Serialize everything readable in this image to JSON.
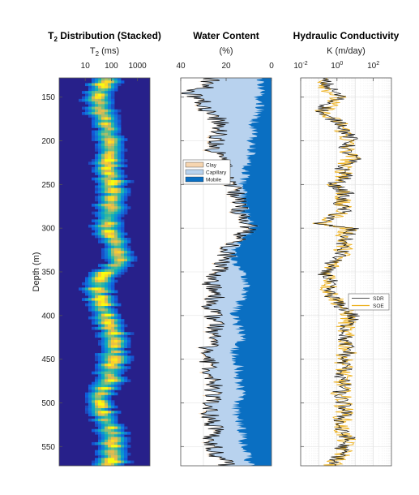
{
  "chart_data": [
    {
      "type": "heatmap",
      "title": "T2 Distribution (Stacked)",
      "title_main": "T",
      "title_sub": "2",
      "title_rest": " Distribution (Stacked)",
      "xlabel_main": "T",
      "xlabel_sub": "2",
      "xlabel_rest": " (ms)",
      "ylabel": "Depth (m)",
      "x_scale": "log",
      "x_ticks": [
        "10",
        "100",
        "1000"
      ],
      "y_ticks": [
        "150",
        "200",
        "250",
        "300",
        "350",
        "400",
        "450",
        "500",
        "550"
      ],
      "ylim": [
        128,
        572
      ],
      "xlim": [
        1,
        3000
      ],
      "colormap": "parula",
      "peak_t2_ms": [
        [
          130,
          60
        ],
        [
          147,
          30
        ],
        [
          165,
          35
        ],
        [
          185,
          70
        ],
        [
          200,
          90
        ],
        [
          220,
          70
        ],
        [
          240,
          90
        ],
        [
          262,
          120
        ],
        [
          280,
          90
        ],
        [
          300,
          75
        ],
        [
          320,
          140
        ],
        [
          335,
          200
        ],
        [
          355,
          35
        ],
        [
          370,
          30
        ],
        [
          390,
          45
        ],
        [
          410,
          90
        ],
        [
          425,
          110
        ],
        [
          440,
          130
        ],
        [
          460,
          100
        ],
        [
          475,
          80
        ],
        [
          490,
          40
        ],
        [
          505,
          40
        ],
        [
          520,
          60
        ],
        [
          540,
          120
        ],
        [
          555,
          110
        ],
        [
          570,
          90
        ]
      ]
    },
    {
      "type": "area",
      "title": "Water Content",
      "xlabel": "(%)",
      "x_ticks": [
        "40",
        "20",
        "0"
      ],
      "xlim": [
        40,
        0
      ],
      "x_reversed": true,
      "ylim": [
        128,
        572
      ],
      "legend": [
        "Clay",
        "Capillary",
        "Mobile"
      ],
      "legend_position": "upper-left",
      "colors": {
        "clay": "#f6d5b0",
        "capillary": "#b8d2ee",
        "mobile": "#0a6fc2"
      },
      "total_water_pct": [
        [
          130,
          27
        ],
        [
          140,
          30
        ],
        [
          145,
          38
        ],
        [
          150,
          32
        ],
        [
          160,
          30
        ],
        [
          170,
          26
        ],
        [
          180,
          22
        ],
        [
          190,
          23
        ],
        [
          200,
          24
        ],
        [
          210,
          26
        ],
        [
          220,
          22
        ],
        [
          230,
          21
        ],
        [
          240,
          22
        ],
        [
          250,
          18
        ],
        [
          260,
          16
        ],
        [
          270,
          15
        ],
        [
          280,
          14
        ],
        [
          290,
          12
        ],
        [
          295,
          9
        ],
        [
          300,
          10
        ],
        [
          310,
          14
        ],
        [
          320,
          18
        ],
        [
          330,
          20
        ],
        [
          340,
          21
        ],
        [
          350,
          24
        ],
        [
          360,
          27
        ],
        [
          370,
          26
        ],
        [
          380,
          25
        ],
        [
          390,
          27
        ],
        [
          400,
          26
        ],
        [
          410,
          24
        ],
        [
          420,
          25
        ],
        [
          430,
          27
        ],
        [
          440,
          28
        ],
        [
          450,
          27
        ],
        [
          460,
          28
        ],
        [
          470,
          27
        ],
        [
          480,
          26
        ],
        [
          490,
          25
        ],
        [
          500,
          27
        ],
        [
          510,
          27
        ],
        [
          520,
          26
        ],
        [
          530,
          25
        ],
        [
          540,
          27
        ],
        [
          550,
          25
        ],
        [
          560,
          24
        ],
        [
          570,
          20
        ]
      ],
      "mobile_water_pct": [
        [
          130,
          5
        ],
        [
          140,
          4
        ],
        [
          150,
          6
        ],
        [
          160,
          5
        ],
        [
          170,
          6
        ],
        [
          180,
          8
        ],
        [
          190,
          8
        ],
        [
          200,
          9
        ],
        [
          210,
          9
        ],
        [
          220,
          10
        ],
        [
          230,
          11
        ],
        [
          240,
          12
        ],
        [
          250,
          13
        ],
        [
          260,
          12
        ],
        [
          270,
          13
        ],
        [
          280,
          12
        ],
        [
          290,
          10
        ],
        [
          295,
          8
        ],
        [
          300,
          9
        ],
        [
          310,
          12
        ],
        [
          320,
          15
        ],
        [
          330,
          17
        ],
        [
          340,
          16
        ],
        [
          350,
          12
        ],
        [
          360,
          11
        ],
        [
          370,
          12
        ],
        [
          380,
          13
        ],
        [
          390,
          15
        ],
        [
          400,
          17
        ],
        [
          410,
          15
        ],
        [
          420,
          13
        ],
        [
          430,
          13
        ],
        [
          440,
          17
        ],
        [
          450,
          16
        ],
        [
          460,
          14
        ],
        [
          470,
          15
        ],
        [
          480,
          14
        ],
        [
          490,
          13
        ],
        [
          500,
          15
        ],
        [
          510,
          16
        ],
        [
          520,
          14
        ],
        [
          530,
          13
        ],
        [
          540,
          13
        ],
        [
          550,
          12
        ],
        [
          560,
          11
        ],
        [
          570,
          9
        ]
      ]
    },
    {
      "type": "line",
      "title": "Hydraulic Conductivity",
      "xlabel": "K (m/day)",
      "x_scale": "log",
      "x_ticks": [
        {
          "base": "10",
          "exp": "-2"
        },
        {
          "base": "10",
          "exp": "0"
        },
        {
          "base": "10",
          "exp": "2"
        }
      ],
      "xlim": [
        0.01,
        1000
      ],
      "ylim": [
        128,
        572
      ],
      "legend": [
        "SDR",
        "SOE"
      ],
      "legend_position": "lower-right",
      "colors": {
        "SDR": "#1a1a1a",
        "SOE": "#edb120"
      },
      "series": [
        {
          "name": "SDR",
          "log10_K_vs_depth": [
            [
              130,
              -0.8
            ],
            [
              140,
              -0.4
            ],
            [
              150,
              0.2
            ],
            [
              160,
              -0.6
            ],
            [
              170,
              -0.9
            ],
            [
              180,
              0.3
            ],
            [
              190,
              0.5
            ],
            [
              200,
              0.8
            ],
            [
              210,
              0.4
            ],
            [
              220,
              1.0
            ],
            [
              230,
              0.2
            ],
            [
              240,
              0.6
            ],
            [
              250,
              -0.2
            ],
            [
              260,
              0.5
            ],
            [
              270,
              0.1
            ],
            [
              280,
              0.4
            ],
            [
              290,
              -0.5
            ],
            [
              295,
              -1.2
            ],
            [
              300,
              0.8
            ],
            [
              310,
              0.5
            ],
            [
              320,
              0.3
            ],
            [
              330,
              0.2
            ],
            [
              340,
              -0.3
            ],
            [
              350,
              -0.7
            ],
            [
              360,
              -0.4
            ],
            [
              370,
              -0.6
            ],
            [
              380,
              -0.2
            ],
            [
              390,
              0.2
            ],
            [
              400,
              0.9
            ],
            [
              410,
              0.6
            ],
            [
              420,
              0.5
            ],
            [
              430,
              0.4
            ],
            [
              440,
              0.7
            ],
            [
              450,
              0.3
            ],
            [
              460,
              0.5
            ],
            [
              470,
              0.2
            ],
            [
              480,
              0.4
            ],
            [
              490,
              0.1
            ],
            [
              500,
              0.3
            ],
            [
              510,
              0.5
            ],
            [
              520,
              0.2
            ],
            [
              530,
              0.1
            ],
            [
              540,
              0.6
            ],
            [
              550,
              0.3
            ],
            [
              560,
              0.2
            ],
            [
              570,
              -0.3
            ]
          ]
        },
        {
          "name": "SOE",
          "log10_K_vs_depth": [
            [
              130,
              -0.6
            ],
            [
              140,
              -0.5
            ],
            [
              150,
              0.0
            ],
            [
              160,
              -0.5
            ],
            [
              170,
              -0.8
            ],
            [
              180,
              0.2
            ],
            [
              190,
              0.4
            ],
            [
              200,
              0.6
            ],
            [
              210,
              0.5
            ],
            [
              220,
              0.8
            ],
            [
              230,
              0.3
            ],
            [
              240,
              0.5
            ],
            [
              250,
              -0.1
            ],
            [
              260,
              0.4
            ],
            [
              270,
              0.2
            ],
            [
              280,
              0.3
            ],
            [
              290,
              -0.3
            ],
            [
              295,
              -1.0
            ],
            [
              300,
              0.6
            ],
            [
              310,
              0.4
            ],
            [
              320,
              0.4
            ],
            [
              330,
              0.3
            ],
            [
              340,
              -0.2
            ],
            [
              350,
              -0.5
            ],
            [
              360,
              -0.3
            ],
            [
              370,
              -0.5
            ],
            [
              380,
              -0.1
            ],
            [
              390,
              0.3
            ],
            [
              400,
              0.7
            ],
            [
              410,
              0.5
            ],
            [
              420,
              0.4
            ],
            [
              430,
              0.5
            ],
            [
              440,
              0.6
            ],
            [
              450,
              0.4
            ],
            [
              460,
              0.4
            ],
            [
              470,
              0.3
            ],
            [
              480,
              0.3
            ],
            [
              490,
              0.2
            ],
            [
              500,
              0.4
            ],
            [
              510,
              0.4
            ],
            [
              520,
              0.3
            ],
            [
              530,
              0.2
            ],
            [
              540,
              0.5
            ],
            [
              550,
              0.4
            ],
            [
              560,
              0.3
            ],
            [
              570,
              -0.2
            ]
          ]
        }
      ]
    }
  ]
}
